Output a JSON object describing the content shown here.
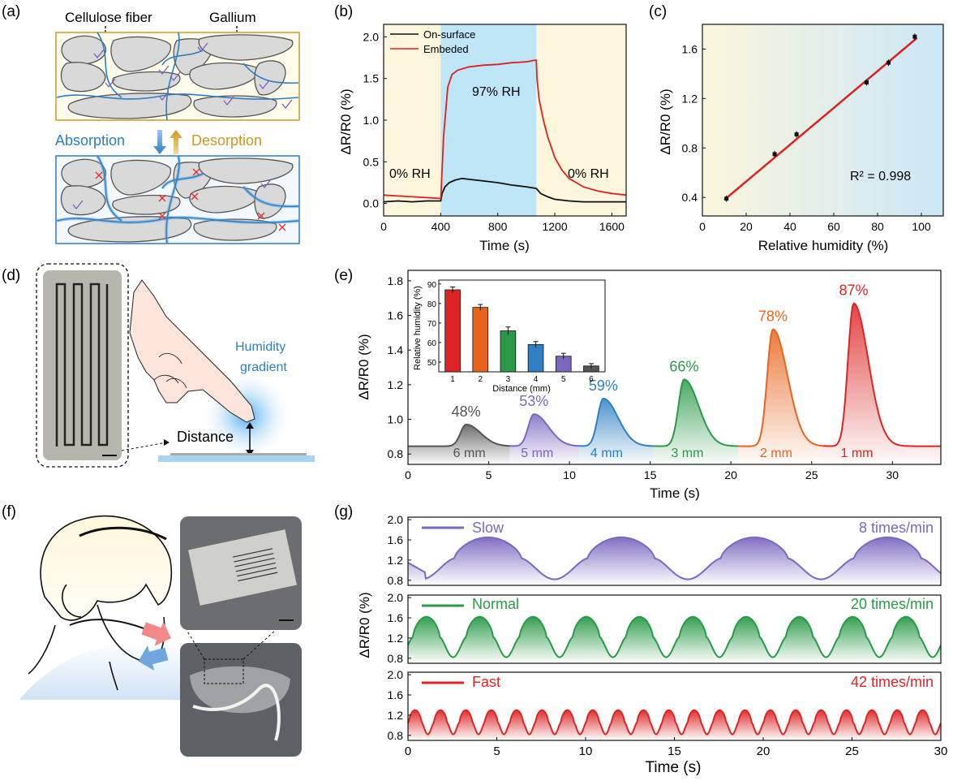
{
  "panel_labels": [
    "(a)",
    "(b)",
    "(c)",
    "(d)",
    "(e)",
    "(f)",
    "(g)"
  ],
  "panel_a": {
    "label_cellulose": "Cellulose fiber",
    "label_gallium": "Gallium",
    "label_absorption": "Absorption",
    "label_desorption": "Desorption",
    "colors": {
      "box_top": "#c9a23a",
      "box_bottom": "#3b82c4",
      "fiber": "#2b7fc1",
      "tick": "#7b5cc4",
      "cross": "#e03030"
    }
  },
  "panel_d": {
    "humidity_text": "Humidity",
    "gradient_text": "gradient",
    "distance_text": "Distance"
  },
  "chart_data": [
    {
      "id": "b",
      "type": "line",
      "xlabel": "Time (s)",
      "ylabel": "ΔR/R0 (%)",
      "xlim": [
        0,
        1700
      ],
      "ylim": [
        -0.15,
        2.15
      ],
      "xticks": [
        "0",
        "400",
        "800",
        "1200",
        "1600"
      ],
      "yticks": [
        "0.0",
        "0.5",
        "1.0",
        "1.5",
        "2.0"
      ],
      "annotations": [
        "0% RH",
        "97% RH",
        "0% RH"
      ],
      "shaded": {
        "start": 400,
        "end": 1070,
        "color": "#bfe6f6"
      },
      "legend": "top-left",
      "series": [
        {
          "name": "On-surface",
          "color": "#111111",
          "x": [
            0,
            100,
            200,
            300,
            400,
            410,
            430,
            460,
            500,
            550,
            600,
            700,
            800,
            900,
            1000,
            1070,
            1100,
            1150,
            1200,
            1300,
            1400,
            1500,
            1600,
            1700
          ],
          "y": [
            0.02,
            0.03,
            0.02,
            0.03,
            0.03,
            0.12,
            0.2,
            0.25,
            0.28,
            0.3,
            0.29,
            0.27,
            0.25,
            0.22,
            0.2,
            0.18,
            0.12,
            0.08,
            0.05,
            0.03,
            0.02,
            0.02,
            0.02,
            0.02
          ]
        },
        {
          "name": "Embeded",
          "color": "#e02020",
          "x": [
            0,
            100,
            200,
            300,
            400,
            402,
            420,
            450,
            480,
            520,
            600,
            700,
            800,
            900,
            1000,
            1060,
            1070,
            1075,
            1090,
            1120,
            1150,
            1200,
            1250,
            1300,
            1400,
            1500,
            1600,
            1700
          ],
          "y": [
            0.1,
            0.09,
            0.08,
            0.07,
            0.06,
            0.1,
            0.8,
            1.4,
            1.55,
            1.6,
            1.64,
            1.66,
            1.67,
            1.69,
            1.7,
            1.72,
            1.72,
            1.5,
            1.25,
            1.0,
            0.8,
            0.55,
            0.4,
            0.3,
            0.2,
            0.15,
            0.12,
            0.1
          ]
        }
      ]
    },
    {
      "id": "c",
      "type": "scatter",
      "xlabel": "Relative humidity (%)",
      "ylabel": "ΔR/R0 (%)",
      "xlim": [
        0,
        110
      ],
      "ylim": [
        0.25,
        1.8
      ],
      "xticks": [
        "0",
        "20",
        "40",
        "60",
        "80",
        "100"
      ],
      "yticks": [
        "0.4",
        "0.8",
        "1.2",
        "1.6"
      ],
      "x": [
        11,
        33,
        43,
        75,
        85,
        97
      ],
      "y": [
        0.39,
        0.75,
        0.91,
        1.33,
        1.49,
        1.7
      ],
      "fit": {
        "x": [
          10,
          98
        ],
        "y": [
          0.38,
          1.69
        ]
      },
      "r2_text": "R² = 0.998"
    },
    {
      "id": "e",
      "type": "area",
      "xlabel": "Time (s)",
      "ylabel": "ΔR/R0 (%)",
      "xlim": [
        0,
        33
      ],
      "ylim": [
        0.74,
        1.86
      ],
      "xticks": [
        "0",
        "5",
        "10",
        "15",
        "20",
        "25",
        "30"
      ],
      "yticks": [
        "0.8",
        "1.0",
        "1.2",
        "1.4",
        "1.6",
        "1.8"
      ],
      "baseline": 0.845,
      "peaks": [
        {
          "t": 3.6,
          "h": 0.97,
          "pct": "48%",
          "dist": "6 mm",
          "color": "#555555"
        },
        {
          "t": 7.8,
          "h": 1.03,
          "pct": "53%",
          "dist": "5 mm",
          "color": "#7b68c0"
        },
        {
          "t": 12.1,
          "h": 1.12,
          "pct": "59%",
          "dist": "4 mm",
          "color": "#2e80c3"
        },
        {
          "t": 17.1,
          "h": 1.23,
          "pct": "66%",
          "dist": "3 mm",
          "color": "#2a9a48"
        },
        {
          "t": 22.6,
          "h": 1.52,
          "pct": "78%",
          "dist": "2 mm",
          "color": "#e8641c"
        },
        {
          "t": 27.6,
          "h": 1.67,
          "pct": "87%",
          "dist": "1 mm",
          "color": "#dd2525"
        }
      ],
      "inset": {
        "type": "bar",
        "xlabel": "Distance (mm)",
        "ylabel": "Relative humidity (%)",
        "categories": [
          "1",
          "2",
          "3",
          "4",
          "5",
          "6"
        ],
        "values": [
          87,
          78,
          66,
          59,
          53,
          48
        ],
        "errors": [
          1.5,
          1.5,
          2,
          1.5,
          1.5,
          1.2
        ],
        "ylim": [
          45,
          92
        ],
        "yticks": [
          "50",
          "60",
          "70",
          "80",
          "90"
        ],
        "colors": [
          "#dd2525",
          "#e8641c",
          "#2a9a48",
          "#2e80c3",
          "#7b68c0",
          "#555555"
        ]
      }
    },
    {
      "id": "g",
      "type": "area",
      "xlabel": "Time (s)",
      "ylabel": "ΔR/R0 (%)",
      "xlim": [
        0,
        30
      ],
      "xticks": [
        "0",
        "5",
        "10",
        "15",
        "20",
        "25",
        "30"
      ],
      "yticks": [
        "0.8",
        "1.2",
        "1.6",
        "2.0"
      ],
      "ylim": [
        0.7,
        2.05
      ],
      "series": [
        {
          "name": "Slow",
          "rate": "8 times/min",
          "color": "#7b68c0"
        },
        {
          "name": "Normal",
          "rate": "20 times/min",
          "color": "#2a9a48"
        },
        {
          "name": "Fast",
          "rate": "42 times/min",
          "color": "#dd2525"
        }
      ]
    }
  ]
}
